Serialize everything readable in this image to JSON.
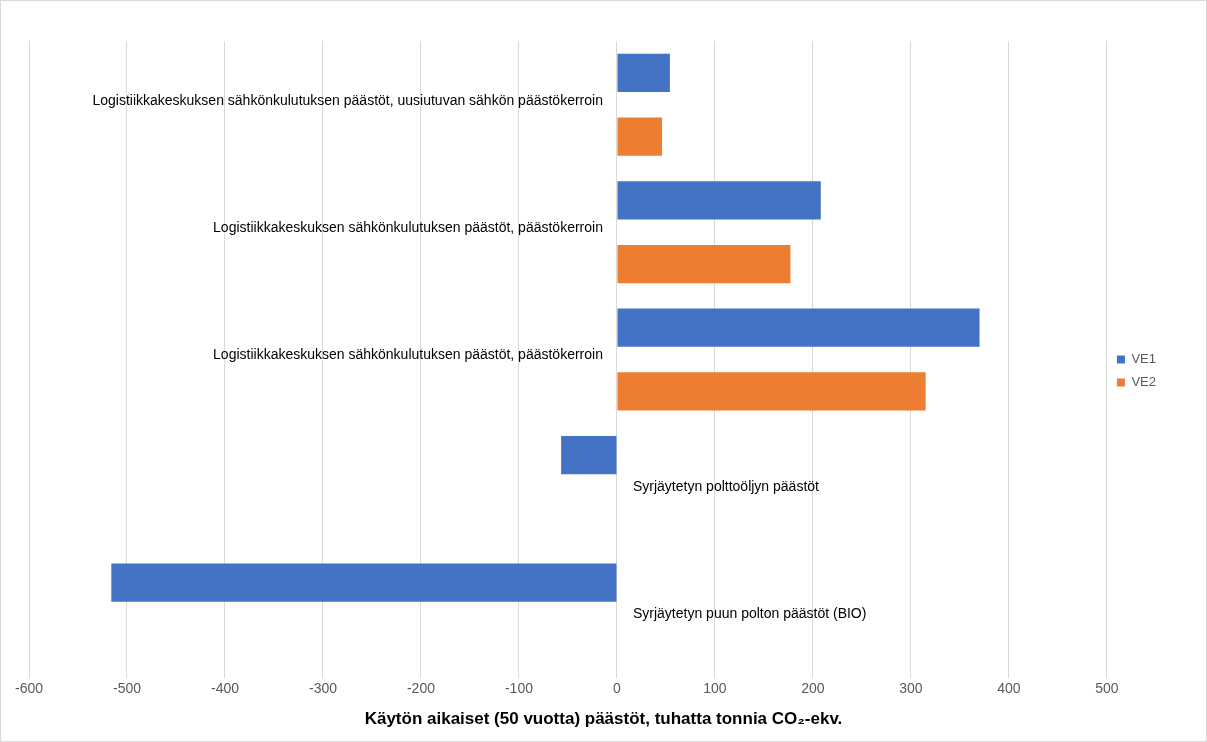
{
  "chart_data": {
    "type": "bar",
    "orientation": "horizontal",
    "xlabel": "Käytön aikaiset (50 vuotta) päästöt, tuhatta tonnia CO₂-ekv.",
    "categories": [
      "Logistiikkakeskuksen sähkönkulutuksen päästöt, uusiutuvan sähkön päästökerroin",
      "Logistiikkakeskuksen sähkönkulutuksen päästöt, päästökerroin",
      "Logistiikkakeskuksen sähkönkulutuksen päästöt, päästökerroin",
      "Syrjäytetyn polttoöljyn päästöt",
      "Syrjäytetyn puun polton päästöt (BIO)"
    ],
    "series": [
      {
        "name": "VE1",
        "color": "#4472c4",
        "values": [
          54,
          208,
          370,
          -57,
          -516
        ]
      },
      {
        "name": "VE2",
        "color": "#ed7d31",
        "values": [
          46,
          177,
          315,
          null,
          null
        ]
      }
    ],
    "xlim": [
      -600,
      500
    ],
    "xticks": [
      -600,
      -500,
      -400,
      -300,
      -200,
      -100,
      0,
      100,
      200,
      300,
      400,
      500
    ],
    "grid": "x",
    "legend": "right"
  }
}
